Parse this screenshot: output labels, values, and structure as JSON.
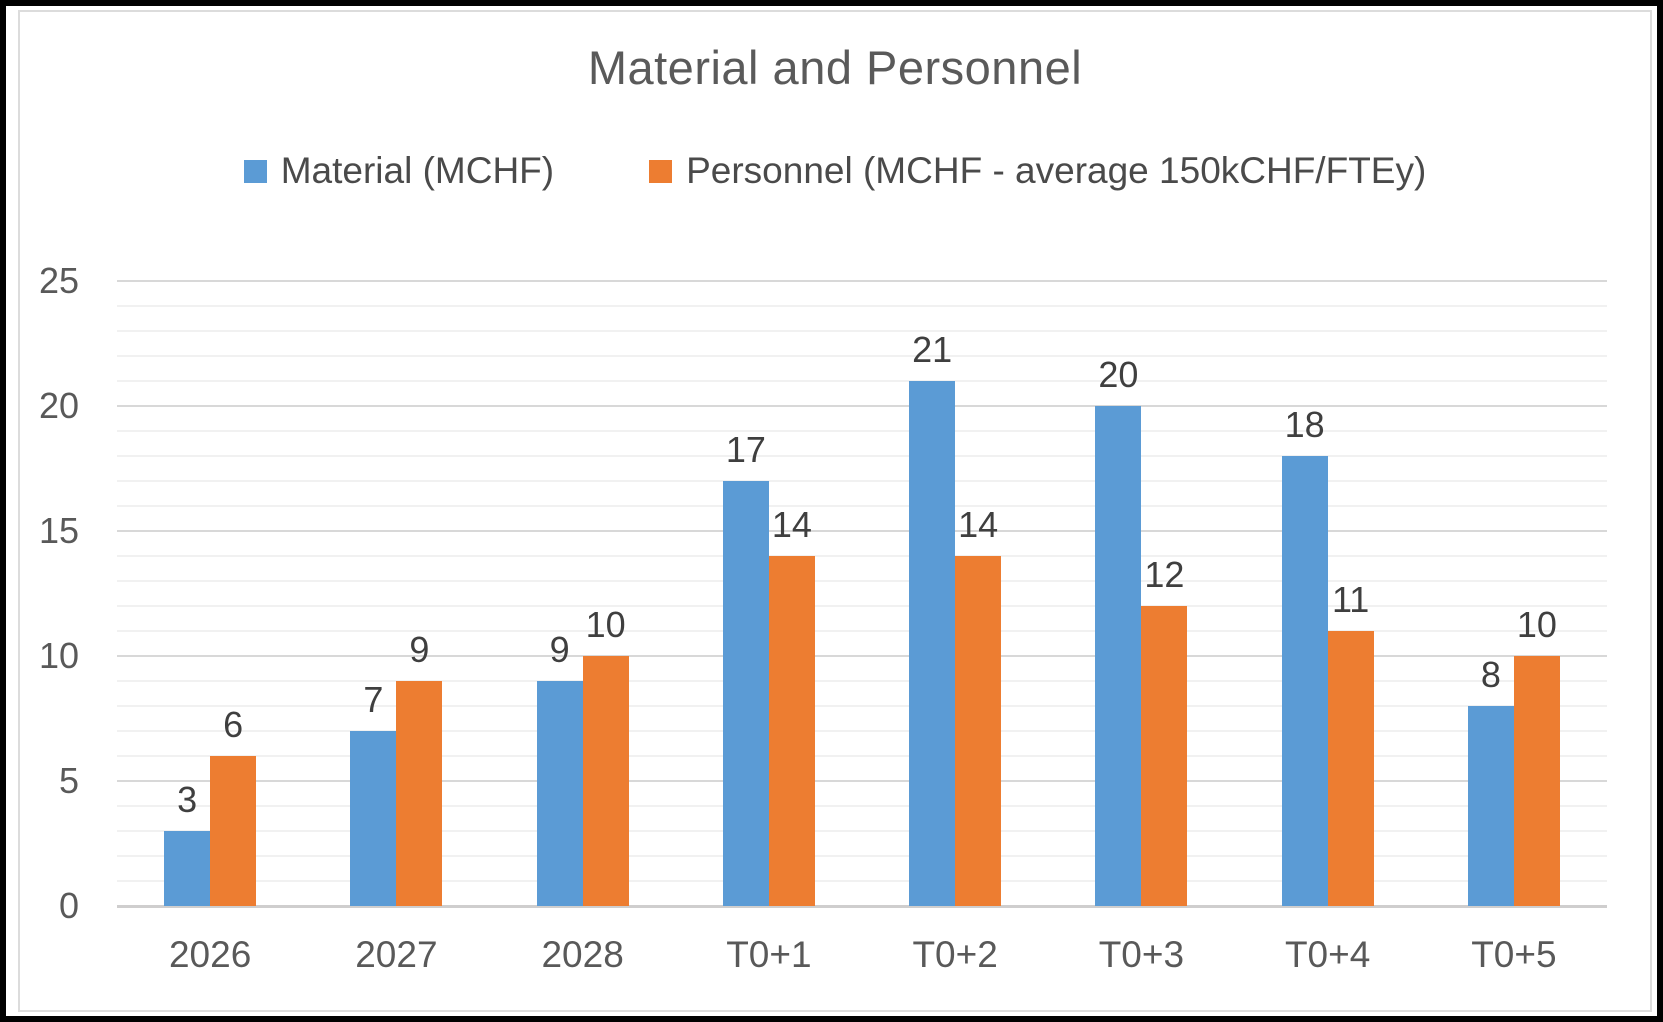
{
  "chart_data": {
    "type": "bar",
    "title": "Material and Personnel",
    "categories": [
      "2026",
      "2027",
      "2028",
      "T0+1",
      "T0+2",
      "T0+3",
      "T0+4",
      "T0+5"
    ],
    "series": [
      {
        "name": "Material (MCHF)",
        "color": "#5B9BD5",
        "values": [
          3,
          7,
          9,
          17,
          21,
          20,
          18,
          8
        ]
      },
      {
        "name": "Personnel (MCHF - average 150kCHF/FTEy)",
        "color": "#ED7D31",
        "values": [
          6,
          9,
          10,
          14,
          14,
          12,
          11,
          10
        ]
      }
    ],
    "ylim": [
      0,
      25
    ],
    "y_major_ticks": [
      0,
      5,
      10,
      15,
      20,
      25
    ],
    "y_minor_unit": 1,
    "grid": "horizontal minor+major, legend top, data labels outside end",
    "legend_position": "top",
    "xlabel": "",
    "ylabel": ""
  },
  "colors": {
    "material": "#5B9BD5",
    "personnel": "#ED7D31",
    "title_text": "#5a5a5a",
    "axis_text": "#595959",
    "data_label_text": "#3f3f3f",
    "gridline_minor": "#f1f1f1",
    "gridline_major": "#d8d8d8",
    "axis_line": "#cfcece",
    "chart_border": "#dcdcdc",
    "frame": "#000000"
  }
}
